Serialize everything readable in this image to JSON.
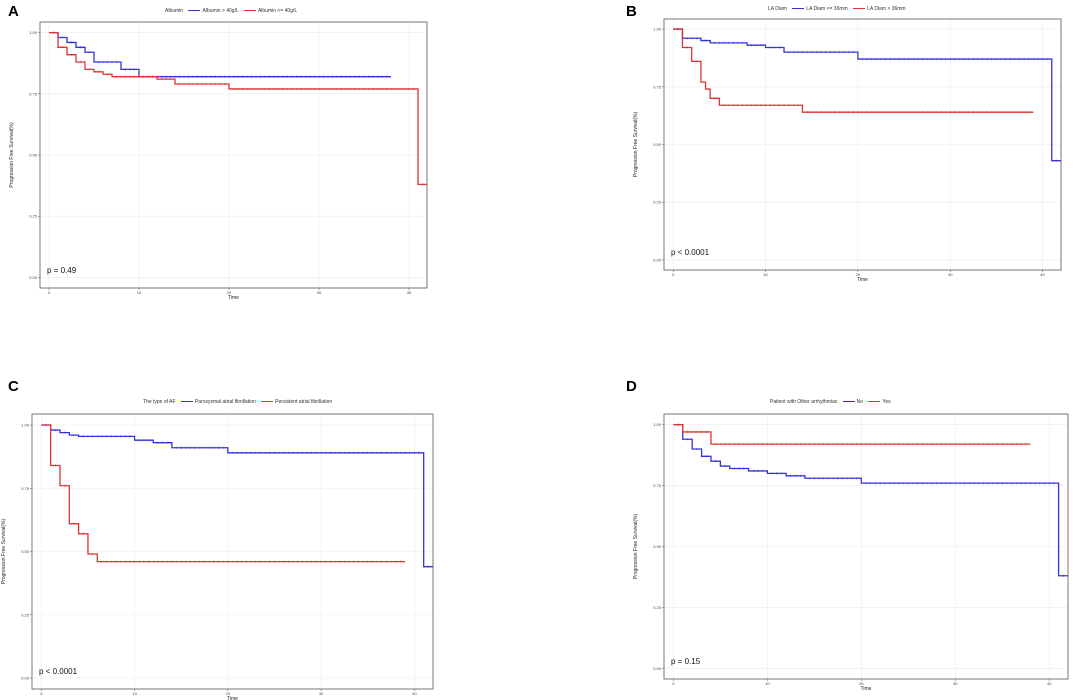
{
  "chart_data": [
    {
      "panel_label": "A",
      "type": "line",
      "plot_kind": "kaplan-meier",
      "legend_title": "Albumin",
      "legend_position": "top",
      "xlabel": "Time",
      "ylabel": "Progression Free Survival(%)",
      "xlim": [
        -1,
        42
      ],
      "ylim": [
        0,
        1
      ],
      "x_ticks": [
        0,
        10,
        20,
        30,
        40
      ],
      "y_ticks": [
        0.0,
        0.25,
        0.5,
        0.75,
        1.0
      ],
      "y_tick_labels": [
        "0.00",
        "0.25",
        "0.50",
        "0.75",
        "1.00"
      ],
      "p_value": "p = 0.49",
      "series": [
        {
          "name": "Albumin > 40g/L",
          "color": "#3333dd",
          "steps": [
            [
              0,
              1.0
            ],
            [
              1,
              0.98
            ],
            [
              2,
              0.96
            ],
            [
              3,
              0.94
            ],
            [
              4,
              0.92
            ],
            [
              5,
              0.88
            ],
            [
              8,
              0.85
            ],
            [
              10,
              0.82
            ],
            [
              38,
              0.82
            ]
          ]
        },
        {
          "name": "Albumin <= 40g/L",
          "color": "#dd3333",
          "steps": [
            [
              0,
              1.0
            ],
            [
              1,
              0.94
            ],
            [
              2,
              0.91
            ],
            [
              3,
              0.88
            ],
            [
              4,
              0.85
            ],
            [
              5,
              0.84
            ],
            [
              6,
              0.83
            ],
            [
              7,
              0.82
            ],
            [
              12,
              0.81
            ],
            [
              14,
              0.79
            ],
            [
              20,
              0.77
            ],
            [
              41,
              0.77
            ],
            [
              41,
              0.38
            ],
            [
              42,
              0.38
            ]
          ]
        }
      ]
    },
    {
      "panel_label": "B",
      "type": "line",
      "plot_kind": "kaplan-meier",
      "legend_title": "LA Diam",
      "legend_position": "top",
      "xlabel": "Time",
      "ylabel": "Progression Free Survival(%)",
      "xlim": [
        -1,
        42
      ],
      "ylim": [
        0,
        1
      ],
      "x_ticks": [
        0,
        10,
        20,
        30,
        40
      ],
      "y_ticks": [
        0.0,
        0.25,
        0.5,
        0.75,
        1.0
      ],
      "y_tick_labels": [
        "0.00",
        "0.25",
        "0.50",
        "0.75",
        "1.00"
      ],
      "p_value": "p < 0.0001",
      "series": [
        {
          "name": "LA Diam <= 36mm",
          "color": "#3333dd",
          "steps": [
            [
              0,
              1.0
            ],
            [
              1,
              0.96
            ],
            [
              3,
              0.95
            ],
            [
              4,
              0.94
            ],
            [
              8,
              0.93
            ],
            [
              10,
              0.92
            ],
            [
              12,
              0.9
            ],
            [
              20,
              0.87
            ],
            [
              41,
              0.87
            ],
            [
              41,
              0.43
            ],
            [
              42,
              0.43
            ]
          ]
        },
        {
          "name": "LA Diam > 36mm",
          "color": "#dd3333",
          "steps": [
            [
              0,
              1.0
            ],
            [
              1,
              0.92
            ],
            [
              2,
              0.86
            ],
            [
              3,
              0.77
            ],
            [
              3.5,
              0.74
            ],
            [
              4,
              0.7
            ],
            [
              5,
              0.67
            ],
            [
              14,
              0.64
            ],
            [
              39,
              0.64
            ]
          ]
        }
      ]
    },
    {
      "panel_label": "C",
      "type": "line",
      "plot_kind": "kaplan-meier",
      "legend_title": "The type of AF",
      "legend_position": "top",
      "xlabel": "Time",
      "ylabel": "Progression Free Survival(%)",
      "xlim": [
        -1,
        42
      ],
      "ylim": [
        0,
        1
      ],
      "x_ticks": [
        0,
        10,
        20,
        30,
        40
      ],
      "y_ticks": [
        0.0,
        0.25,
        0.5,
        0.75,
        1.0
      ],
      "y_tick_labels": [
        "0.00",
        "0.25",
        "0.50",
        "0.75",
        "1.00"
      ],
      "p_value": "p < 0.0001",
      "series": [
        {
          "name": "Paroxysmal atrial fibrillation",
          "color": "#3333dd",
          "steps": [
            [
              0,
              1.0
            ],
            [
              1,
              0.98
            ],
            [
              2,
              0.97
            ],
            [
              3,
              0.96
            ],
            [
              4,
              0.955
            ],
            [
              10,
              0.94
            ],
            [
              12,
              0.93
            ],
            [
              14,
              0.91
            ],
            [
              20,
              0.89
            ],
            [
              41,
              0.89
            ],
            [
              41,
              0.44
            ],
            [
              42,
              0.44
            ]
          ]
        },
        {
          "name": "Persistent atrial fibrillation",
          "color": "#dd3333",
          "steps": [
            [
              0,
              1.0
            ],
            [
              1,
              0.84
            ],
            [
              2,
              0.76
            ],
            [
              3,
              0.61
            ],
            [
              4,
              0.57
            ],
            [
              5,
              0.49
            ],
            [
              6,
              0.46
            ],
            [
              39,
              0.46
            ]
          ]
        }
      ]
    },
    {
      "panel_label": "D",
      "type": "line",
      "plot_kind": "kaplan-meier",
      "legend_title": "Patient with Other arrhythmias",
      "legend_position": "top",
      "xlabel": "Time",
      "ylabel": "Progression Free Survival(%)",
      "xlim": [
        -1,
        42
      ],
      "ylim": [
        0,
        1
      ],
      "x_ticks": [
        0,
        10,
        20,
        30,
        40
      ],
      "y_ticks": [
        0.0,
        0.25,
        0.5,
        0.75,
        1.0
      ],
      "y_tick_labels": [
        "0.00",
        "0.25",
        "0.50",
        "0.75",
        "1.00"
      ],
      "p_value": "p = 0.15",
      "series": [
        {
          "name": "No",
          "color": "#3333dd",
          "steps": [
            [
              0,
              1.0
            ],
            [
              1,
              0.94
            ],
            [
              2,
              0.9
            ],
            [
              3,
              0.87
            ],
            [
              4,
              0.85
            ],
            [
              5,
              0.83
            ],
            [
              6,
              0.82
            ],
            [
              8,
              0.81
            ],
            [
              10,
              0.8
            ],
            [
              12,
              0.79
            ],
            [
              14,
              0.78
            ],
            [
              20,
              0.76
            ],
            [
              41,
              0.76
            ],
            [
              41,
              0.38
            ],
            [
              42,
              0.38
            ]
          ]
        },
        {
          "name": "Yes",
          "color": "#dd3333",
          "steps": [
            [
              0,
              1.0
            ],
            [
              1,
              0.97
            ],
            [
              4,
              0.92
            ],
            [
              38,
              0.92
            ]
          ]
        }
      ]
    }
  ]
}
